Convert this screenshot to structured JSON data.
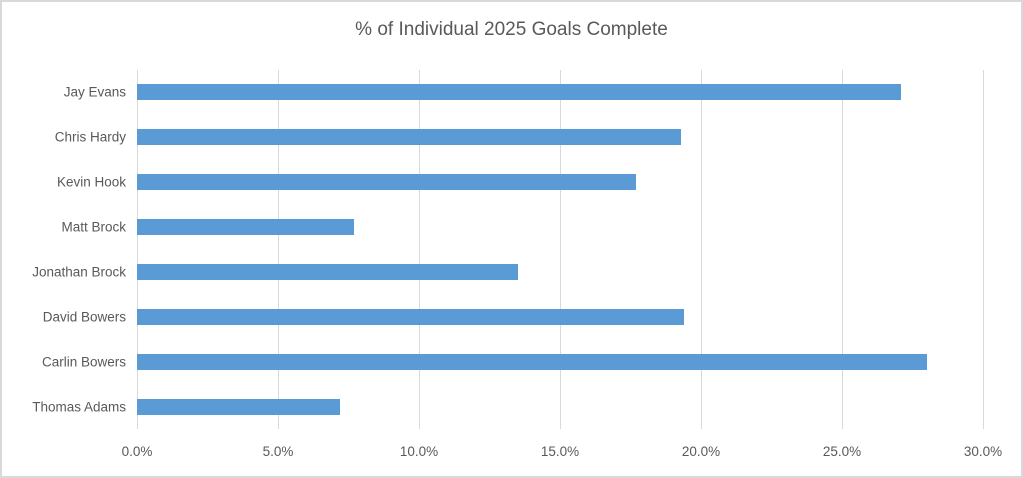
{
  "chart_data": {
    "type": "bar",
    "orientation": "horizontal",
    "title": "% of Individual 2025 Goals Complete",
    "categories": [
      "Jay Evans",
      "Chris Hardy",
      "Kevin Hook",
      "Matt Brock",
      "Jonathan Brock",
      "David Bowers",
      "Carlin Bowers",
      "Thomas Adams"
    ],
    "values": [
      27.1,
      19.3,
      17.7,
      7.7,
      13.5,
      19.4,
      28.0,
      7.2
    ],
    "value_unit": "%",
    "xlabel": "",
    "ylabel": "",
    "xlim": [
      0,
      30
    ],
    "x_ticks": [
      0,
      5,
      10,
      15,
      20,
      25,
      30
    ],
    "x_tick_labels": [
      "0.0%",
      "5.0%",
      "10.0%",
      "15.0%",
      "20.0%",
      "25.0%",
      "30.0%"
    ],
    "grid": true,
    "legend": false,
    "colors": {
      "bar": "#5B9BD5",
      "gridline": "#D9D9D9",
      "axis_line": "#D9D9D9",
      "tick_text": "#595959",
      "title_text": "#595959",
      "chart_border": "#D9D9D9",
      "background": "#FFFFFF"
    }
  }
}
